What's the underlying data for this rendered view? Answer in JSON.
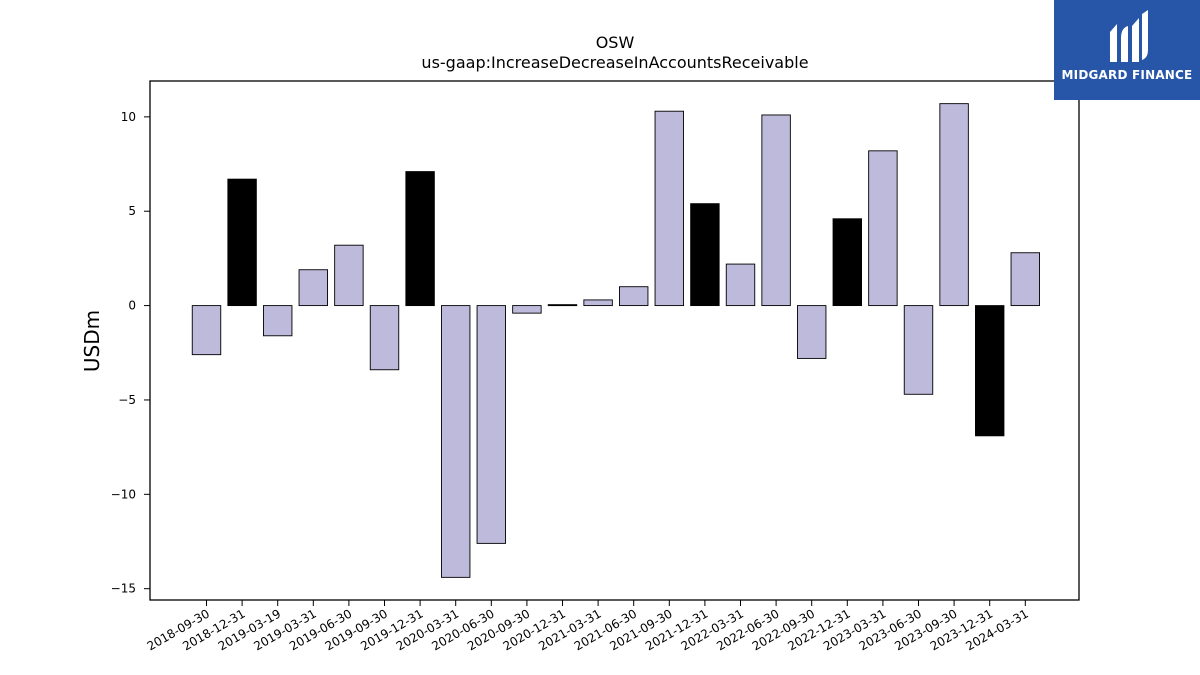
{
  "brand": {
    "name": "MIDGARD FINANCE",
    "bg_color": "#2756a8"
  },
  "chart_data": {
    "type": "bar",
    "title": "OSW",
    "subtitle": "us-gaap:IncreaseDecreaseInAccountsReceivable",
    "xlabel": "",
    "ylabel": "USDm",
    "ylim": [
      -15.6,
      11.9
    ],
    "yticks": [
      10,
      5,
      0,
      -5,
      -10,
      -15
    ],
    "ytick_labels": [
      "10",
      "5",
      "0",
      "−5",
      "−10",
      "−15"
    ],
    "grid": false,
    "colors": {
      "quarterly": "#bdbadb",
      "annual": "#000000"
    },
    "categories": [
      "2018-09-30",
      "2018-12-31",
      "2019-03-19",
      "2019-03-31",
      "2019-06-30",
      "2019-09-30",
      "2019-12-31",
      "2020-03-31",
      "2020-06-30",
      "2020-09-30",
      "2020-12-31",
      "2021-03-31",
      "2021-06-30",
      "2021-09-30",
      "2021-12-31",
      "2022-03-31",
      "2022-06-30",
      "2022-09-30",
      "2022-12-31",
      "2023-03-31",
      "2023-06-30",
      "2023-09-30",
      "2023-12-31",
      "2024-03-31"
    ],
    "values": [
      -2.6,
      6.7,
      -1.6,
      1.9,
      3.2,
      -3.4,
      7.1,
      -14.4,
      -12.6,
      -0.4,
      0.05,
      0.3,
      1.0,
      10.3,
      5.4,
      2.2,
      10.1,
      -2.8,
      4.6,
      8.2,
      -4.7,
      10.7,
      -6.9,
      2.8
    ],
    "highlight": [
      "quarterly",
      "annual",
      "quarterly",
      "quarterly",
      "quarterly",
      "quarterly",
      "annual",
      "quarterly",
      "quarterly",
      "quarterly",
      "annual",
      "quarterly",
      "quarterly",
      "quarterly",
      "annual",
      "quarterly",
      "quarterly",
      "quarterly",
      "annual",
      "quarterly",
      "quarterly",
      "quarterly",
      "annual",
      "quarterly"
    ]
  }
}
